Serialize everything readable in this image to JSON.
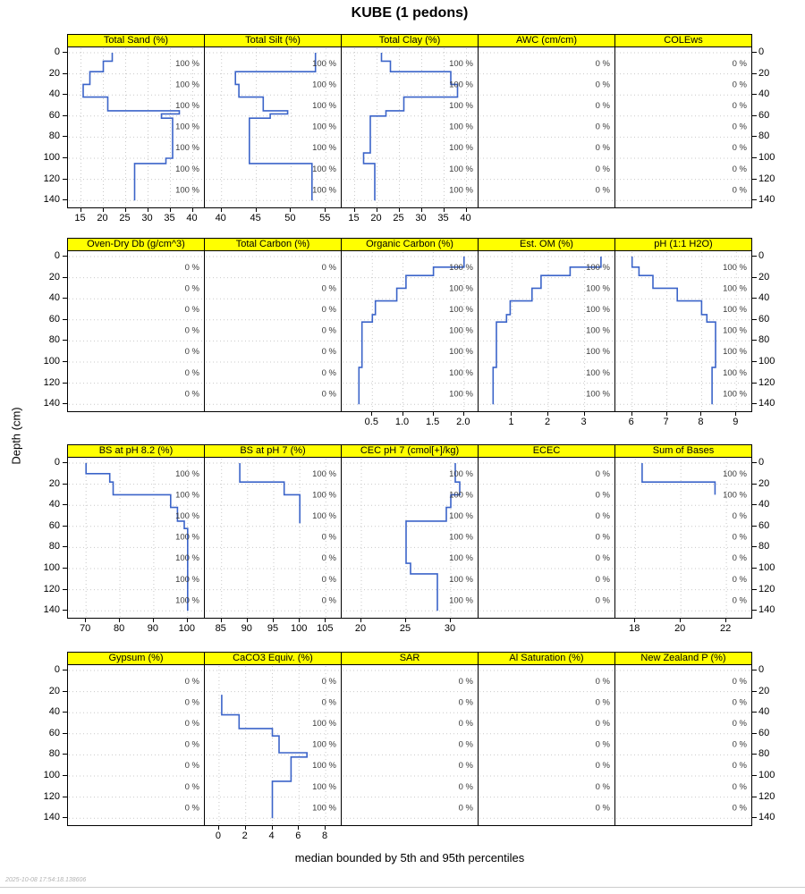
{
  "title": "KUBE (1 pedons)",
  "caption": "median bounded by 5th and 95th percentiles",
  "timestamp": "2025-10-08 17:54:18.138606",
  "y_axis": {
    "label": "Depth (cm)",
    "ticks": [
      0,
      20,
      40,
      60,
      80,
      100,
      120,
      140
    ]
  },
  "colors": {
    "line": "#3b64c9",
    "strip_bg": "#ffff00",
    "panel_border": "#000000",
    "grid": "#c9c9c9",
    "fraction_text": "#3a3a3a"
  },
  "chart_data": {
    "type": "line",
    "style": "soil-depth-profile-step",
    "x_axis_position": "bottom",
    "y_range_cm": [
      0,
      140
    ],
    "slab_label_depths": [
      10,
      30,
      50,
      70,
      90,
      110,
      130
    ],
    "rows": [
      [
        {
          "title": "Total Sand (%)",
          "x_ticks": [
            "15",
            "20",
            "25",
            "30",
            "35",
            "40"
          ],
          "x_domain": [
            13.5,
            41.5
          ],
          "segments": [
            [
              0,
              8,
              22
            ],
            [
              8,
              18,
              20
            ],
            [
              18,
              30,
              17
            ],
            [
              30,
              42,
              15.5
            ],
            [
              42,
              55,
              21
            ],
            [
              55,
              58,
              37
            ],
            [
              58,
              62,
              33
            ],
            [
              62,
              100,
              35.5
            ],
            [
              100,
              105,
              34
            ],
            [
              105,
              140,
              27
            ]
          ],
          "fractions": [
            "100 %",
            "100 %",
            "100 %",
            "100 %",
            "100 %",
            "100 %",
            "100 %"
          ]
        },
        {
          "title": "Total Silt (%)",
          "x_ticks": [
            "40",
            "45",
            "50",
            "55"
          ],
          "x_domain": [
            38.5,
            56.5
          ],
          "segments": [
            [
              0,
              18,
              53.5
            ],
            [
              18,
              30,
              42
            ],
            [
              30,
              42,
              42.5
            ],
            [
              42,
              55,
              46
            ],
            [
              55,
              58,
              49.5
            ],
            [
              58,
              62,
              47
            ],
            [
              62,
              105,
              44
            ],
            [
              105,
              140,
              53
            ]
          ],
          "fractions": [
            "100 %",
            "100 %",
            "100 %",
            "100 %",
            "100 %",
            "100 %",
            "100 %"
          ]
        },
        {
          "title": "Total Clay (%)",
          "x_ticks": [
            "15",
            "20",
            "25",
            "30",
            "35",
            "40"
          ],
          "x_domain": [
            13.5,
            41.5
          ],
          "segments": [
            [
              0,
              8,
              21
            ],
            [
              8,
              18,
              23
            ],
            [
              18,
              30,
              36.5
            ],
            [
              30,
              42,
              38
            ],
            [
              42,
              55,
              26
            ],
            [
              55,
              60,
              22
            ],
            [
              60,
              95,
              18.5
            ],
            [
              95,
              105,
              17
            ],
            [
              105,
              140,
              19.5
            ]
          ],
          "fractions": [
            "100 %",
            "100 %",
            "100 %",
            "100 %",
            "100 %",
            "100 %",
            "100 %"
          ]
        },
        {
          "title": "AWC (cm/cm)",
          "x_ticks": [],
          "x_domain": [
            0,
            1
          ],
          "segments": [],
          "fractions": [
            "0 %",
            "0 %",
            "0 %",
            "0 %",
            "0 %",
            "0 %",
            "0 %"
          ]
        },
        {
          "title": "COLEws",
          "x_ticks": [],
          "x_domain": [
            0,
            1
          ],
          "segments": [],
          "fractions": [
            "0 %",
            "0 %",
            "0 %",
            "0 %",
            "0 %",
            "0 %",
            "0 %"
          ]
        }
      ],
      [
        {
          "title": "Oven-Dry Db (g/cm^3)",
          "x_ticks": [],
          "x_domain": [
            0,
            1
          ],
          "segments": [],
          "fractions": [
            "0 %",
            "0 %",
            "0 %",
            "0 %",
            "0 %",
            "0 %",
            "0 %"
          ]
        },
        {
          "title": "Total Carbon (%)",
          "x_ticks": [],
          "x_domain": [
            0,
            1
          ],
          "segments": [],
          "fractions": [
            "0 %",
            "0 %",
            "0 %",
            "0 %",
            "0 %",
            "0 %",
            "0 %"
          ]
        },
        {
          "title": "Organic Carbon (%)",
          "x_ticks": [
            "0.5",
            "1.0",
            "1.5",
            "2.0"
          ],
          "x_domain": [
            0.1,
            2.15
          ],
          "segments": [
            [
              0,
              10,
              2.0
            ],
            [
              10,
              18,
              1.5
            ],
            [
              18,
              30,
              1.05
            ],
            [
              30,
              42,
              0.9
            ],
            [
              42,
              55,
              0.55
            ],
            [
              55,
              62,
              0.5
            ],
            [
              62,
              105,
              0.33
            ],
            [
              105,
              140,
              0.28
            ]
          ],
          "fractions": [
            "100 %",
            "100 %",
            "100 %",
            "100 %",
            "100 %",
            "100 %",
            "100 %"
          ]
        },
        {
          "title": "Est. OM (%)",
          "x_ticks": [
            "1",
            "2",
            "3"
          ],
          "x_domain": [
            0.25,
            3.7
          ],
          "segments": [
            [
              0,
              10,
              3.45
            ],
            [
              10,
              18,
              2.6
            ],
            [
              18,
              30,
              1.8
            ],
            [
              30,
              42,
              1.55
            ],
            [
              42,
              55,
              0.95
            ],
            [
              55,
              62,
              0.85
            ],
            [
              62,
              105,
              0.57
            ],
            [
              105,
              140,
              0.48
            ]
          ],
          "fractions": [
            "100 %",
            "100 %",
            "100 %",
            "100 %",
            "100 %",
            "100 %",
            "100 %"
          ]
        },
        {
          "title": "pH (1:1 H2O)",
          "x_ticks": [
            "6",
            "7",
            "8",
            "9"
          ],
          "x_domain": [
            5.7,
            9.3
          ],
          "segments": [
            [
              0,
              10,
              6.0
            ],
            [
              10,
              18,
              6.2
            ],
            [
              18,
              30,
              6.6
            ],
            [
              30,
              42,
              7.3
            ],
            [
              42,
              55,
              8.0
            ],
            [
              55,
              62,
              8.15
            ],
            [
              62,
              105,
              8.4
            ],
            [
              105,
              140,
              8.3
            ]
          ],
          "fractions": [
            "100 %",
            "100 %",
            "100 %",
            "100 %",
            "100 %",
            "100 %",
            "100 %"
          ]
        }
      ],
      [
        {
          "title": "BS at pH 8.2 (%)",
          "x_ticks": [
            "70",
            "80",
            "90",
            "100"
          ],
          "x_domain": [
            66.5,
            103.5
          ],
          "segments": [
            [
              0,
              10,
              70
            ],
            [
              10,
              18,
              77
            ],
            [
              18,
              30,
              78
            ],
            [
              30,
              42,
              95
            ],
            [
              42,
              55,
              97
            ],
            [
              55,
              62,
              99
            ],
            [
              62,
              140,
              100
            ]
          ],
          "fractions": [
            "100 %",
            "100 %",
            "100 %",
            "100 %",
            "100 %",
            "100 %",
            "100 %"
          ]
        },
        {
          "title": "BS at pH 7 (%)",
          "x_ticks": [
            "85",
            "90",
            "95",
            "100",
            "105"
          ],
          "x_domain": [
            83,
            107
          ],
          "segments": [
            [
              0,
              18,
              88.5
            ],
            [
              18,
              30,
              97
            ],
            [
              30,
              57,
              100
            ]
          ],
          "fractions": [
            "100 %",
            "100 %",
            "100 %",
            "0 %",
            "0 %",
            "0 %",
            "0 %"
          ]
        },
        {
          "title": "CEC pH 7 (cmol[+]/kg)",
          "x_ticks": [
            "20",
            "25",
            "30"
          ],
          "x_domain": [
            18.5,
            32.5
          ],
          "segments": [
            [
              0,
              18,
              30.5
            ],
            [
              18,
              30,
              31
            ],
            [
              30,
              42,
              30
            ],
            [
              42,
              55,
              29.5
            ],
            [
              55,
              95,
              25
            ],
            [
              95,
              105,
              25.5
            ],
            [
              105,
              140,
              28.5
            ]
          ],
          "fractions": [
            "100 %",
            "100 %",
            "100 %",
            "100 %",
            "100 %",
            "100 %",
            "100 %"
          ]
        },
        {
          "title": "ECEC",
          "x_ticks": [],
          "x_domain": [
            0,
            1
          ],
          "segments": [],
          "fractions": [
            "0 %",
            "0 %",
            "0 %",
            "0 %",
            "0 %",
            "0 %",
            "0 %"
          ]
        },
        {
          "title": "Sum of Bases",
          "x_ticks": [
            "18",
            "20",
            "22"
          ],
          "x_domain": [
            17.4,
            22.9
          ],
          "segments": [
            [
              0,
              18,
              18.3
            ],
            [
              18,
              30,
              21.5
            ]
          ],
          "fractions": [
            "100 %",
            "100 %",
            "0 %",
            "0 %",
            "0 %",
            "0 %",
            "0 %"
          ]
        }
      ],
      [
        {
          "title": "Gypsum (%)",
          "x_ticks": [],
          "x_domain": [
            0,
            1
          ],
          "segments": [],
          "fractions": [
            "0 %",
            "0 %",
            "0 %",
            "0 %",
            "0 %",
            "0 %",
            "0 %"
          ]
        },
        {
          "title": "CaCO3 Equiv. (%)",
          "x_ticks": [
            "0",
            "2",
            "4",
            "6",
            "8"
          ],
          "x_domain": [
            -0.6,
            8.8
          ],
          "segments": [
            [
              23,
              42,
              0.2
            ],
            [
              42,
              55,
              1.5
            ],
            [
              55,
              62,
              4
            ],
            [
              62,
              78,
              4.5
            ],
            [
              78,
              82,
              6.6
            ],
            [
              82,
              105,
              5.4
            ],
            [
              105,
              140,
              4
            ]
          ],
          "fractions": [
            "0 %",
            "0 %",
            "100 %",
            "100 %",
            "100 %",
            "100 %",
            "100 %"
          ]
        },
        {
          "title": "SAR",
          "x_ticks": [],
          "x_domain": [
            0,
            1
          ],
          "segments": [],
          "fractions": [
            "0 %",
            "0 %",
            "0 %",
            "0 %",
            "0 %",
            "0 %",
            "0 %"
          ]
        },
        {
          "title": "Al Saturation (%)",
          "x_ticks": [],
          "x_domain": [
            0,
            1
          ],
          "segments": [],
          "fractions": [
            "0 %",
            "0 %",
            "0 %",
            "0 %",
            "0 %",
            "0 %",
            "0 %"
          ]
        },
        {
          "title": "New Zealand P (%)",
          "x_ticks": [],
          "x_domain": [
            0,
            1
          ],
          "segments": [],
          "fractions": [
            "0 %",
            "0 %",
            "0 %",
            "0 %",
            "0 %",
            "0 %",
            "0 %"
          ]
        }
      ]
    ]
  }
}
